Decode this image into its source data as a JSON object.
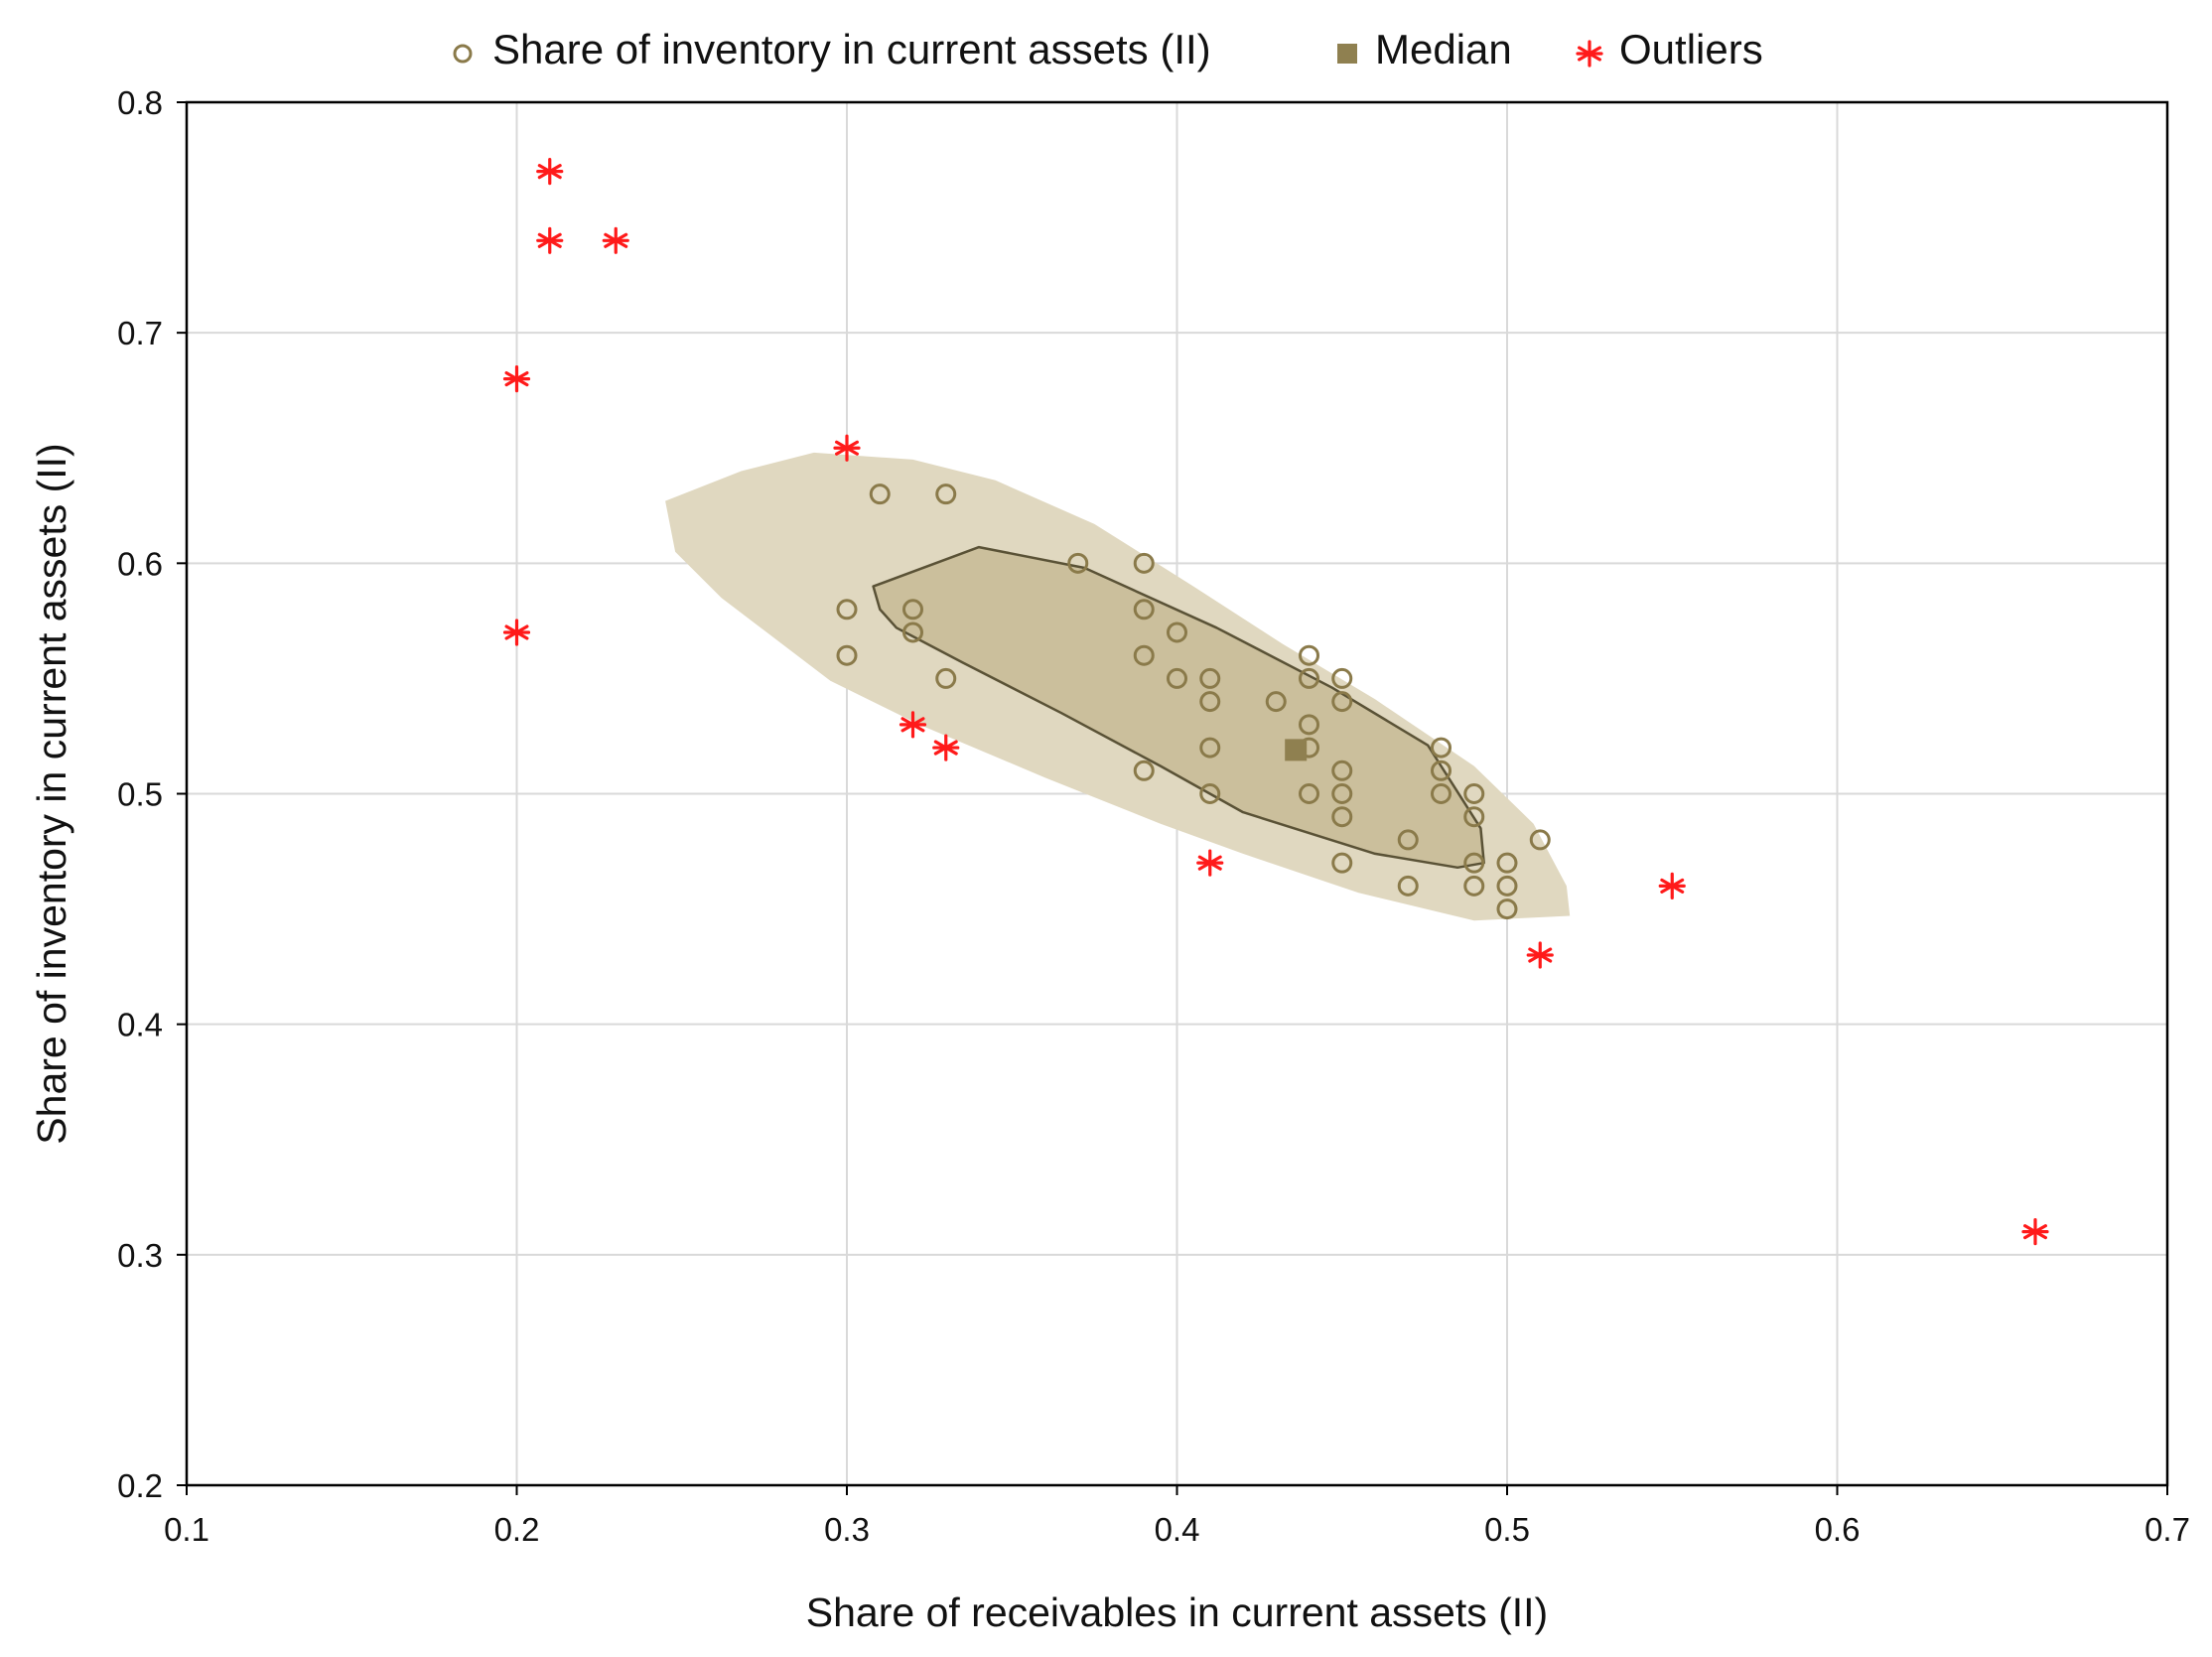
{
  "chart_data": {
    "type": "scatter",
    "title": "",
    "xlabel": "Share of receivables in current assets (II)",
    "ylabel": "Share of inventory in current assets (II)",
    "xlim": [
      0.1,
      0.7
    ],
    "ylim": [
      0.2,
      0.8
    ],
    "xticks": [
      "0.1",
      "0.2",
      "0.3",
      "0.4",
      "0.5",
      "0.6",
      "0.7"
    ],
    "yticks": [
      "0.2",
      "0.3",
      "0.4",
      "0.5",
      "0.6",
      "0.7",
      "0.8"
    ],
    "grid": true,
    "legend_position": "top",
    "colors": {
      "points": "#8a7a4a",
      "median": "#8f8050",
      "outliers": "#ff1a1a",
      "outer_region": "#e0d8c0",
      "inner_region": "#cbbf9c",
      "inner_outline": "#5a5236",
      "grid": "#d9d9d9"
    },
    "legend": [
      {
        "label": "Share of inventory in current assets (II)",
        "marker": "circle",
        "series": "points"
      },
      {
        "label": "Median",
        "marker": "square",
        "series": "median"
      },
      {
        "label": "Outliers",
        "marker": "asterisk",
        "series": "outliers"
      }
    ],
    "series": [
      {
        "id": "points",
        "name": "Share of inventory in current assets (II)",
        "marker": "circle",
        "points": [
          [
            0.31,
            0.63
          ],
          [
            0.33,
            0.63
          ],
          [
            0.37,
            0.6
          ],
          [
            0.39,
            0.6
          ],
          [
            0.3,
            0.58
          ],
          [
            0.32,
            0.58
          ],
          [
            0.39,
            0.58
          ],
          [
            0.32,
            0.57
          ],
          [
            0.4,
            0.57
          ],
          [
            0.3,
            0.56
          ],
          [
            0.39,
            0.56
          ],
          [
            0.44,
            0.56
          ],
          [
            0.33,
            0.55
          ],
          [
            0.4,
            0.55
          ],
          [
            0.41,
            0.55
          ],
          [
            0.44,
            0.55
          ],
          [
            0.45,
            0.55
          ],
          [
            0.41,
            0.54
          ],
          [
            0.43,
            0.54
          ],
          [
            0.45,
            0.54
          ],
          [
            0.44,
            0.53
          ],
          [
            0.41,
            0.52
          ],
          [
            0.44,
            0.52
          ],
          [
            0.48,
            0.52
          ],
          [
            0.39,
            0.51
          ],
          [
            0.45,
            0.51
          ],
          [
            0.48,
            0.51
          ],
          [
            0.41,
            0.5
          ],
          [
            0.44,
            0.5
          ],
          [
            0.45,
            0.5
          ],
          [
            0.48,
            0.5
          ],
          [
            0.49,
            0.5
          ],
          [
            0.45,
            0.49
          ],
          [
            0.49,
            0.49
          ],
          [
            0.47,
            0.48
          ],
          [
            0.51,
            0.48
          ],
          [
            0.45,
            0.47
          ],
          [
            0.49,
            0.47
          ],
          [
            0.5,
            0.47
          ],
          [
            0.47,
            0.46
          ],
          [
            0.49,
            0.46
          ],
          [
            0.5,
            0.46
          ],
          [
            0.5,
            0.45
          ]
        ]
      },
      {
        "id": "median",
        "name": "Median",
        "marker": "square",
        "points": [
          [
            0.436,
            0.519
          ]
        ]
      },
      {
        "id": "outliers",
        "name": "Outliers",
        "marker": "asterisk",
        "points": [
          [
            0.21,
            0.77
          ],
          [
            0.21,
            0.74
          ],
          [
            0.23,
            0.74
          ],
          [
            0.2,
            0.68
          ],
          [
            0.2,
            0.57
          ],
          [
            0.3,
            0.65
          ],
          [
            0.32,
            0.53
          ],
          [
            0.33,
            0.52
          ],
          [
            0.41,
            0.47
          ],
          [
            0.51,
            0.43
          ],
          [
            0.55,
            0.46
          ],
          [
            0.66,
            0.31
          ]
        ]
      }
    ],
    "regions": {
      "outer": [
        [
          0.245,
          0.627
        ],
        [
          0.268,
          0.64
        ],
        [
          0.29,
          0.648
        ],
        [
          0.32,
          0.645
        ],
        [
          0.345,
          0.636
        ],
        [
          0.375,
          0.617
        ],
        [
          0.405,
          0.59
        ],
        [
          0.432,
          0.565
        ],
        [
          0.46,
          0.541
        ],
        [
          0.49,
          0.512
        ],
        [
          0.508,
          0.487
        ],
        [
          0.518,
          0.46
        ],
        [
          0.519,
          0.447
        ],
        [
          0.49,
          0.445
        ],
        [
          0.455,
          0.457
        ],
        [
          0.42,
          0.474
        ],
        [
          0.395,
          0.487
        ],
        [
          0.36,
          0.507
        ],
        [
          0.322,
          0.53
        ],
        [
          0.295,
          0.549
        ],
        [
          0.262,
          0.585
        ],
        [
          0.248,
          0.605
        ]
      ],
      "inner": [
        [
          0.308,
          0.59
        ],
        [
          0.34,
          0.607
        ],
        [
          0.372,
          0.598
        ],
        [
          0.412,
          0.572
        ],
        [
          0.447,
          0.546
        ],
        [
          0.476,
          0.521
        ],
        [
          0.492,
          0.485
        ],
        [
          0.493,
          0.47
        ],
        [
          0.485,
          0.468
        ],
        [
          0.46,
          0.474
        ],
        [
          0.42,
          0.492
        ],
        [
          0.395,
          0.512
        ],
        [
          0.365,
          0.535
        ],
        [
          0.335,
          0.557
        ],
        [
          0.315,
          0.572
        ],
        [
          0.31,
          0.58
        ]
      ]
    }
  }
}
